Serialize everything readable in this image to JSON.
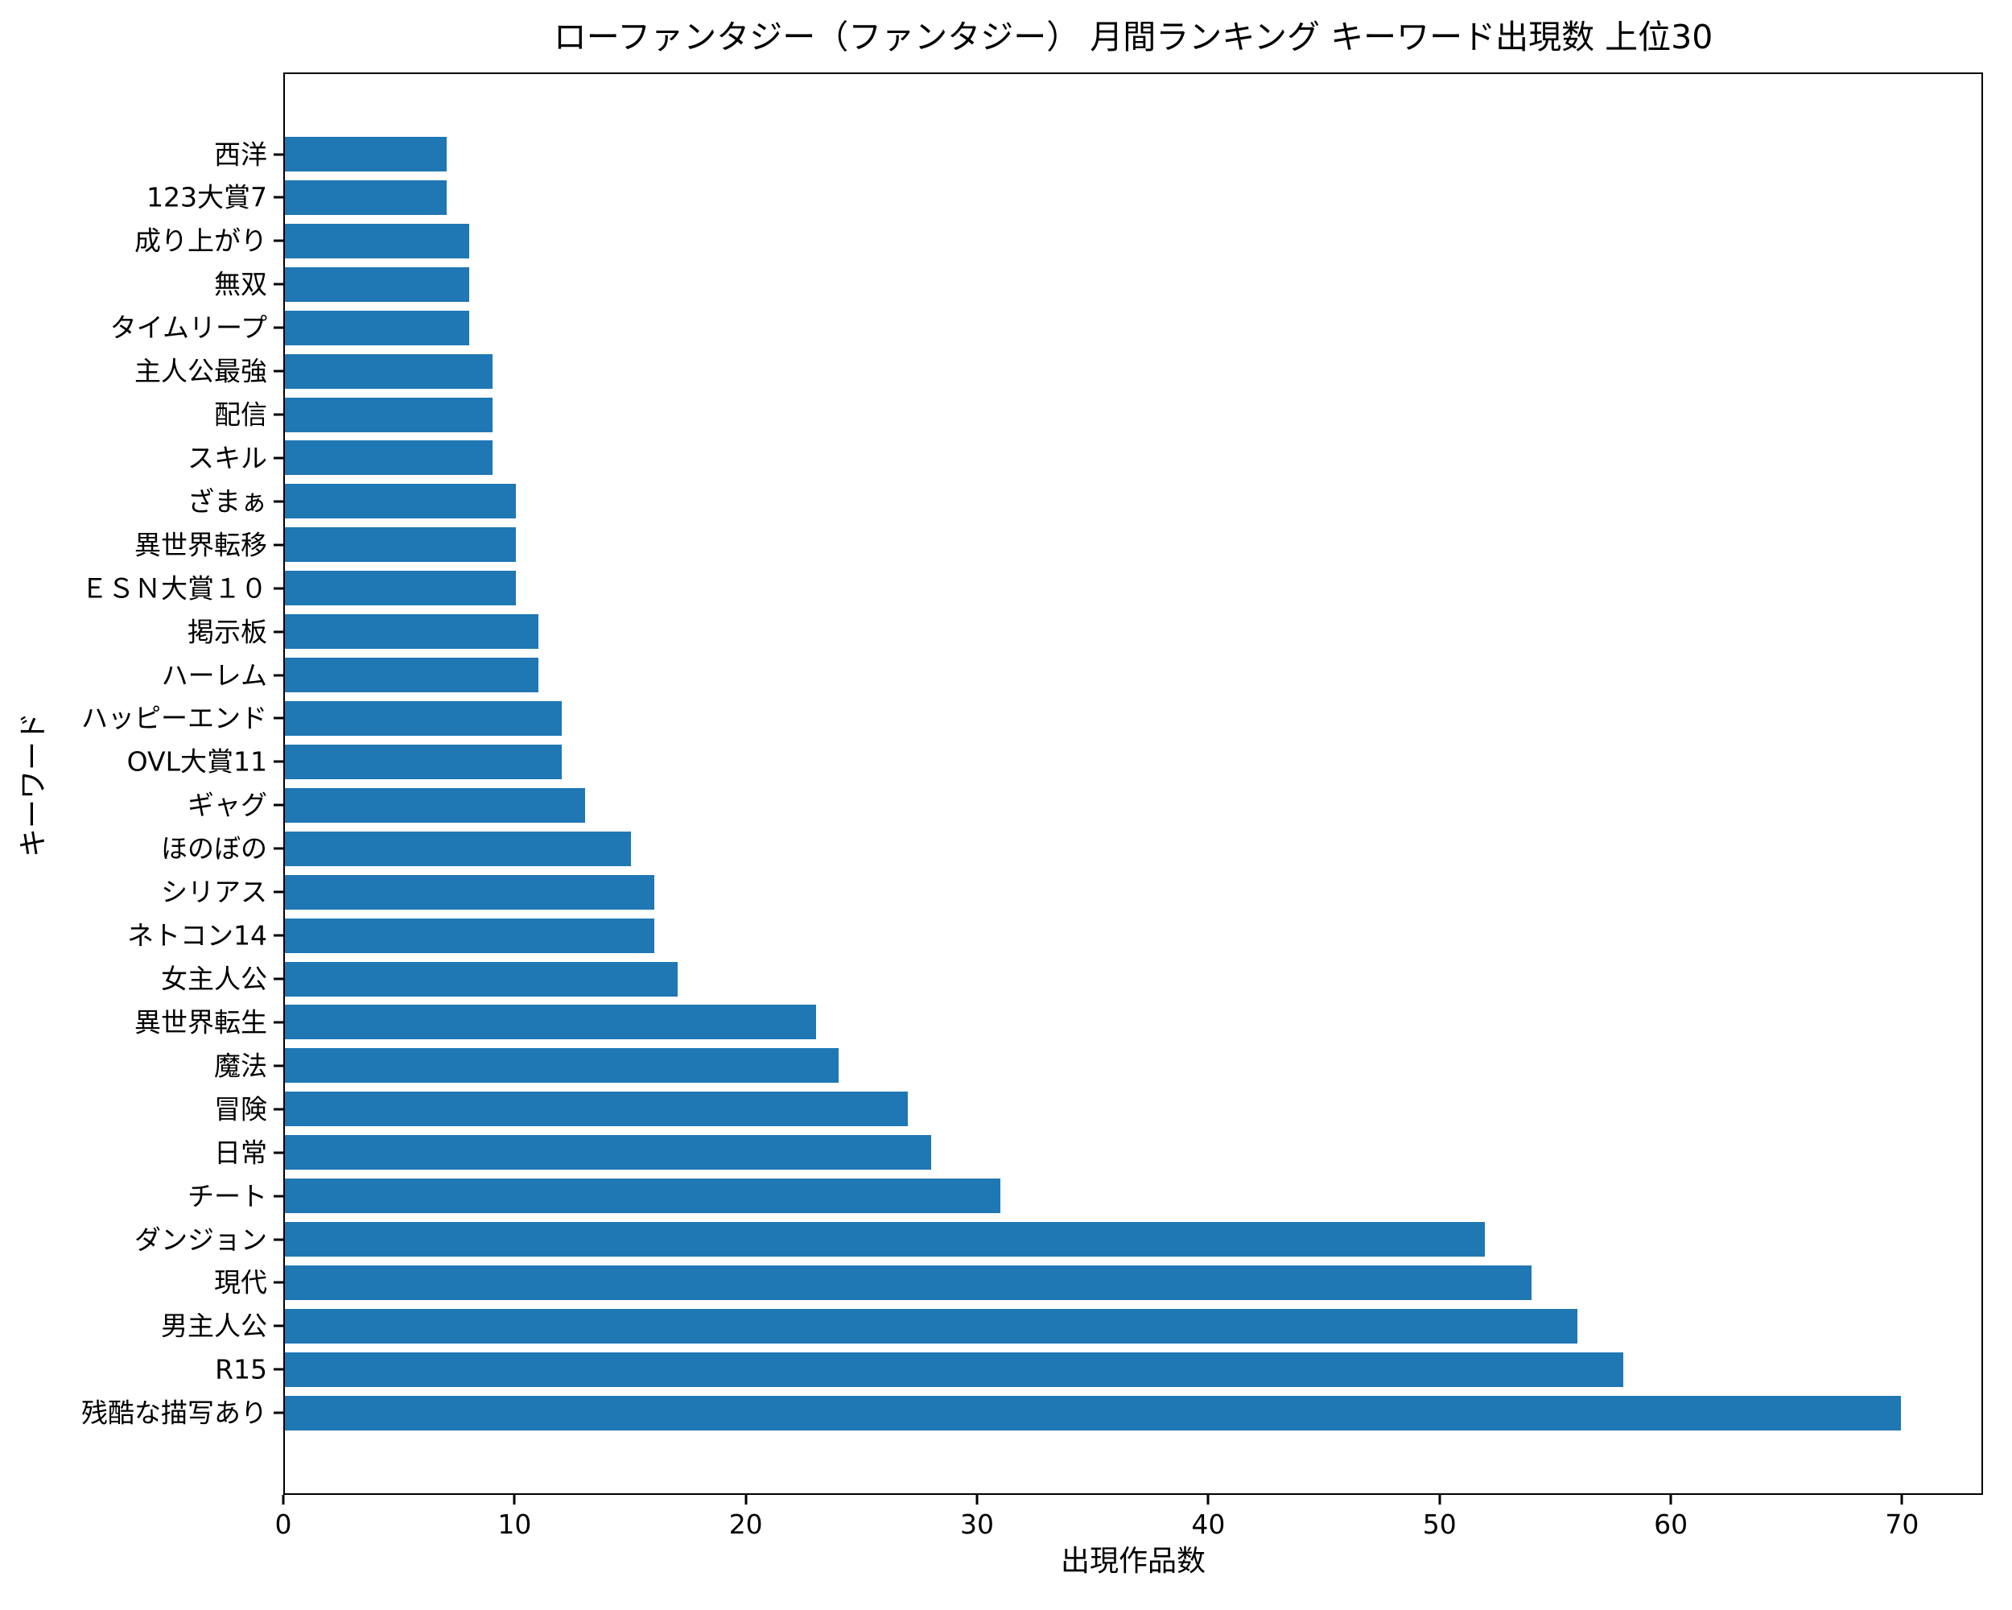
{
  "title": "ローファンタジー（ファンタジー） 月間ランキング キーワード出現数 上位30",
  "axes": {
    "x_label": "出現作品数",
    "y_label": "キーワード"
  },
  "colors": {
    "bar": "#1f77b4",
    "spine": "#000000",
    "text": "#000000",
    "background": "#ffffff"
  },
  "chart_data": {
    "type": "bar",
    "orientation": "horizontal",
    "title": "ローファンタジー（ファンタジー） 月間ランキング キーワード出現数 上位30",
    "xlabel": "出現作品数",
    "ylabel": "キーワード",
    "xlim": [
      0,
      73.5
    ],
    "x_ticks": [
      0,
      10,
      20,
      30,
      40,
      50,
      60,
      70
    ],
    "grid": false,
    "legend": "none",
    "bar_color": "#1f77b4",
    "category_order": "top-to-bottom",
    "categories": [
      "西洋",
      "123大賞7",
      "成り上がり",
      "無双",
      "タイムリープ",
      "主人公最強",
      "配信",
      "スキル",
      "ざまぁ",
      "異世界転移",
      "ＥＳＮ大賞１０",
      "掲示板",
      "ハーレム",
      "ハッピーエンド",
      "OVL大賞11",
      "ギャグ",
      "ほのぼの",
      "シリアス",
      "ネトコン14",
      "女主人公",
      "異世界転生",
      "魔法",
      "冒険",
      "日常",
      "チート",
      "ダンジョン",
      "現代",
      "男主人公",
      "R15",
      "残酷な描写あり"
    ],
    "values": [
      7,
      7,
      8,
      8,
      8,
      9,
      9,
      9,
      10,
      10,
      10,
      11,
      11,
      12,
      12,
      13,
      15,
      16,
      16,
      17,
      23,
      24,
      27,
      28,
      31,
      52,
      54,
      56,
      58,
      70
    ]
  }
}
